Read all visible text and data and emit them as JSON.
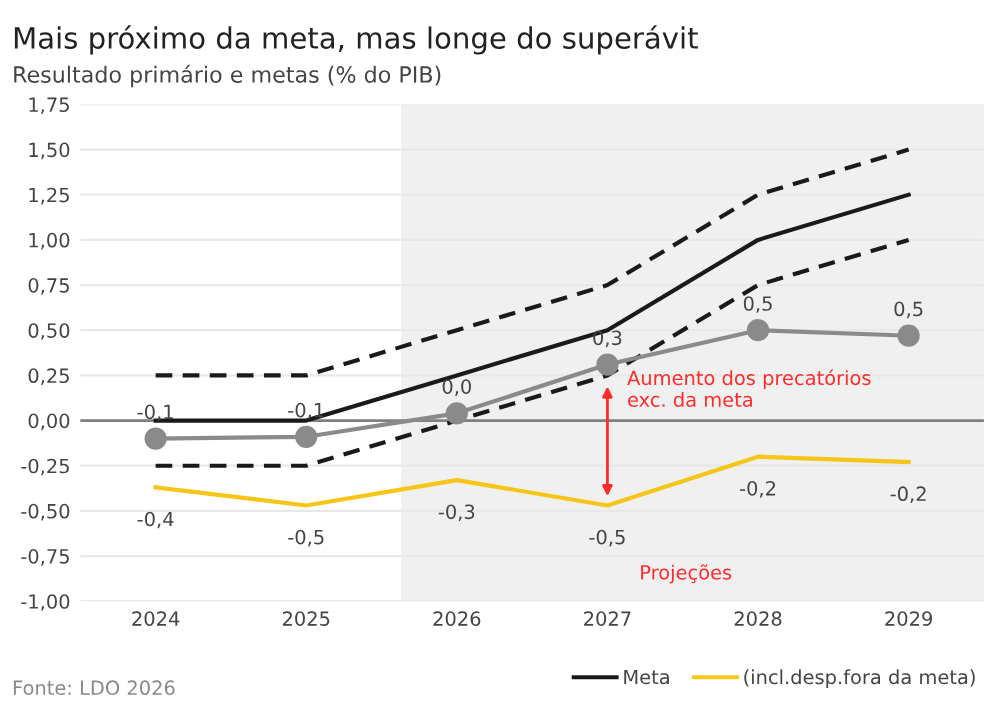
{
  "chart_data": {
    "type": "line",
    "title": "Mais próximo da meta, mas longe do superávit",
    "subtitle": "Resultado primário e metas (% do PIB)",
    "x": [
      2024,
      2025,
      2026,
      2027,
      2028,
      2029
    ],
    "xlim": [
      2023.5,
      2029.5
    ],
    "xticks": [
      2024,
      2025,
      2026,
      2027,
      2028,
      2029
    ],
    "ylim": [
      -1.0,
      1.75
    ],
    "yticks": [
      {
        "value": -1.0,
        "label": "-1,00"
      },
      {
        "value": -0.75,
        "label": "-0,75"
      },
      {
        "value": -0.5,
        "label": "-0,50"
      },
      {
        "value": -0.25,
        "label": "-0,25"
      },
      {
        "value": 0,
        "label": "0,00"
      },
      {
        "value": 0.25,
        "label": "0,25"
      },
      {
        "value": 0.5,
        "label": "0,50"
      },
      {
        "value": 0.75,
        "label": "0,75"
      },
      {
        "value": 1.0,
        "label": "1,00"
      },
      {
        "value": 1.25,
        "label": "1,25"
      },
      {
        "value": 1.5,
        "label": "1,50"
      },
      {
        "value": 1.75,
        "label": "1,75"
      }
    ],
    "grid": "y",
    "legend": "bottom right",
    "series": [
      {
        "color": "#1a1a1a",
        "line_style": "dashed",
        "values": [
          0.25,
          0.25,
          0.5,
          0.75,
          1.25,
          1.5
        ]
      },
      {
        "color": "#1a1a1a",
        "line_style": "dashed",
        "values": [
          -0.25,
          -0.25,
          0.0,
          0.25,
          0.75,
          1.0
        ]
      },
      {
        "name": "Meta",
        "color": "#1a1a1a",
        "line_style": "solid",
        "values": [
          0.0,
          0.0,
          0.25,
          0.5,
          1.0,
          1.25
        ]
      },
      {
        "name": "(incl.desp.fora da meta)",
        "color": "#f5c518",
        "line_style": "solid",
        "values": [
          -0.37,
          -0.47,
          -0.33,
          -0.47,
          -0.2,
          -0.23
        ],
        "value_labels": [
          "-0,4",
          "-0,5",
          "-0,3",
          "-0,5",
          "-0,2",
          "-0,2"
        ]
      },
      {
        "color": "#8a8a8a",
        "line_style": "solid",
        "marker": "circle",
        "values": [
          -0.1,
          -0.09,
          0.04,
          0.31,
          0.5,
          0.47
        ],
        "value_labels": [
          "-0,1",
          "-0,1",
          "0,0",
          "0,3",
          "0,5",
          "0,5"
        ]
      }
    ],
    "ref_lines": [
      {
        "axis": "y",
        "value": 0,
        "color": "#808080"
      }
    ],
    "bands": [
      {
        "axis": "x",
        "from": 2025.63,
        "to": 2029.5,
        "color": "#f0f0f0"
      }
    ],
    "annotations": [
      "Aumento dos precatórios\nexc. da meta",
      "Projeções",
      "Fonte: LDO 2026"
    ]
  }
}
